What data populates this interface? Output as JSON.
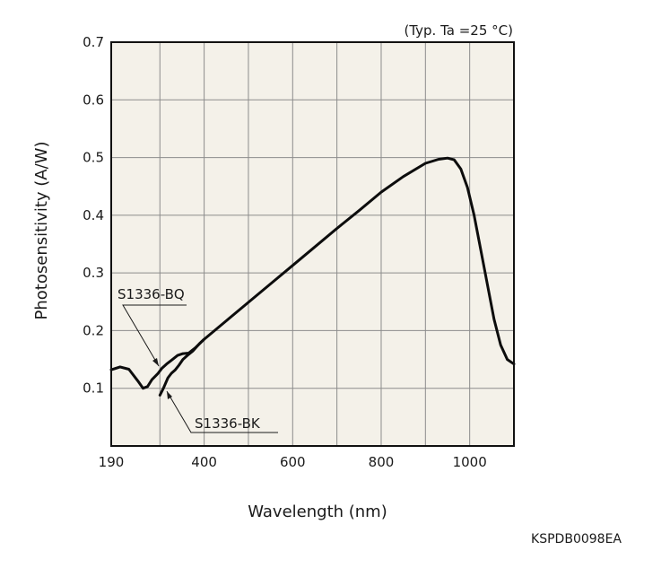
{
  "chart_data": {
    "type": "line",
    "note": "(Typ. Ta =25 °C)",
    "xlabel": "Wavelength (nm)",
    "ylabel": "Photosensitivity (A/W)",
    "figure_code": "KSPDB0098EA",
    "xlim": [
      190,
      1100
    ],
    "ylim": [
      0,
      0.7
    ],
    "x_ticks": [
      190,
      400,
      600,
      800,
      1000
    ],
    "x_grid": [
      300,
      400,
      500,
      600,
      700,
      800,
      900,
      1000
    ],
    "y_ticks": [
      0.1,
      0.2,
      0.3,
      0.4,
      0.5,
      0.6,
      0.7
    ],
    "grid": true,
    "background_color": "#f4f1e9",
    "line_color": "#0d0d0d",
    "series": [
      {
        "name": "S1336-BQ",
        "points": [
          [
            190,
            0.132
          ],
          [
            210,
            0.137
          ],
          [
            230,
            0.133
          ],
          [
            250,
            0.113
          ],
          [
            262,
            0.1
          ],
          [
            272,
            0.103
          ],
          [
            282,
            0.115
          ],
          [
            295,
            0.125
          ],
          [
            305,
            0.135
          ],
          [
            315,
            0.142
          ],
          [
            325,
            0.148
          ],
          [
            340,
            0.157
          ],
          [
            352,
            0.16
          ],
          [
            365,
            0.161
          ],
          [
            380,
            0.17
          ],
          [
            400,
            0.185
          ],
          [
            450,
            0.217
          ],
          [
            500,
            0.249
          ],
          [
            550,
            0.281
          ],
          [
            600,
            0.313
          ],
          [
            650,
            0.345
          ],
          [
            700,
            0.377
          ],
          [
            750,
            0.408
          ],
          [
            800,
            0.44
          ],
          [
            850,
            0.467
          ],
          [
            900,
            0.49
          ],
          [
            930,
            0.497
          ],
          [
            950,
            0.499
          ],
          [
            965,
            0.496
          ],
          [
            980,
            0.48
          ],
          [
            995,
            0.448
          ],
          [
            1010,
            0.4
          ],
          [
            1025,
            0.34
          ],
          [
            1040,
            0.28
          ],
          [
            1055,
            0.22
          ],
          [
            1070,
            0.175
          ],
          [
            1085,
            0.15
          ],
          [
            1100,
            0.142
          ]
        ]
      },
      {
        "name": "S1336-BK",
        "points": [
          [
            300,
            0.088
          ],
          [
            308,
            0.1
          ],
          [
            318,
            0.118
          ],
          [
            326,
            0.126
          ],
          [
            335,
            0.132
          ],
          [
            343,
            0.14
          ],
          [
            352,
            0.15
          ],
          [
            362,
            0.157
          ],
          [
            375,
            0.165
          ],
          [
            390,
            0.178
          ],
          [
            400,
            0.185
          ]
        ]
      }
    ]
  }
}
